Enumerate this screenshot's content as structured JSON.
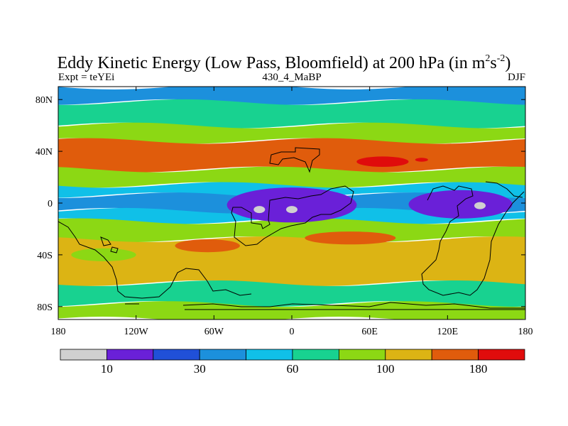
{
  "chart_data": {
    "type": "heatmap",
    "title_main": "Eddy Kinetic Energy (Low Pass, Bloomfield) at 200 hPa (in m",
    "title_sup1": "2",
    "title_mid": "s",
    "title_sup2": "-2",
    "title_end": ")",
    "left_subtitle": "Expt = teYEi",
    "center_subtitle": "430_4_MaBP",
    "right_subtitle": "DJF",
    "x_axis": {
      "range": [
        -180,
        180
      ],
      "ticks": [
        -180,
        -120,
        -60,
        0,
        60,
        120,
        180
      ],
      "tick_labels": [
        "180",
        "120W",
        "60W",
        "0",
        "60E",
        "120E",
        "180"
      ]
    },
    "y_axis": {
      "range": [
        -90,
        90
      ],
      "ticks": [
        80,
        40,
        0,
        -40,
        -80
      ],
      "tick_labels": [
        "80N",
        "40N",
        "0",
        "40S",
        "80S"
      ]
    },
    "colorbar": {
      "colors": [
        "#d0d0d0",
        "#6a20d8",
        "#2050d8",
        "#1c90dc",
        "#10c0e8",
        "#18d290",
        "#8cd814",
        "#dcb414",
        "#e05c0c",
        "#e00c0c"
      ],
      "labels": [
        {
          "boundary": 1,
          "text": "10"
        },
        {
          "boundary": 3,
          "text": "30"
        },
        {
          "boundary": 5,
          "text": "60"
        },
        {
          "boundary": 7,
          "text": "100"
        },
        {
          "boundary": 9,
          "text": "180"
        }
      ]
    },
    "field_bands": [
      {
        "lat_range": [
          78,
          90
        ],
        "level": 3
      },
      {
        "lat_range": [
          60,
          78
        ],
        "level": 5
      },
      {
        "lat_range": [
          48,
          60
        ],
        "level": 6
      },
      {
        "lat_range": [
          26,
          48
        ],
        "level": 8
      },
      {
        "lat_range": [
          14,
          26
        ],
        "level": 6
      },
      {
        "lat_range": [
          6,
          14
        ],
        "level": 4
      },
      {
        "lat_range": [
          -6,
          6
        ],
        "level": 3
      },
      {
        "lat_range": [
          -14,
          -6
        ],
        "level": 4
      },
      {
        "lat_range": [
          -28,
          -14
        ],
        "level": 6
      },
      {
        "lat_range": [
          -62,
          -28
        ],
        "level": 7
      },
      {
        "lat_range": [
          -78,
          -62
        ],
        "level": 5
      },
      {
        "lat_range": [
          -90,
          -78
        ],
        "level": 6
      }
    ],
    "features": [
      {
        "name": "equatorial-minimum-atlantic-africa",
        "lon_range": [
          -50,
          50
        ],
        "lat_range": [
          -15,
          12
        ],
        "level": 1
      },
      {
        "name": "equatorial-minimum-west-pacific",
        "lon_range": [
          90,
          170
        ],
        "lat_range": [
          -12,
          10
        ],
        "level": 1
      },
      {
        "name": "core-min-1",
        "lon": -25,
        "lat": -5,
        "level": 0
      },
      {
        "name": "core-min-2",
        "lon": 0,
        "lat": -5,
        "level": 0
      },
      {
        "name": "core-min-3",
        "lon": 145,
        "lat": -2,
        "level": 0
      },
      {
        "name": "storm-track-maximum-asia",
        "lon_range": [
          50,
          90
        ],
        "lat_range": [
          28,
          36
        ],
        "level": 9
      },
      {
        "name": "storm-track-maximum-small",
        "lon_range": [
          95,
          105
        ],
        "lat_range": [
          32,
          35
        ],
        "level": 9
      },
      {
        "name": "southern-ocean-band-1",
        "lon_range": [
          -90,
          -40
        ],
        "lat_range": [
          -38,
          -28
        ],
        "level": 8
      },
      {
        "name": "southern-ocean-band-2",
        "lon_range": [
          10,
          80
        ],
        "lat_range": [
          -32,
          -22
        ],
        "level": 8
      },
      {
        "name": "southern-ocean-band-3",
        "lon_range": [
          -170,
          -120
        ],
        "lat_range": [
          -45,
          -35
        ],
        "level": 6
      }
    ]
  }
}
